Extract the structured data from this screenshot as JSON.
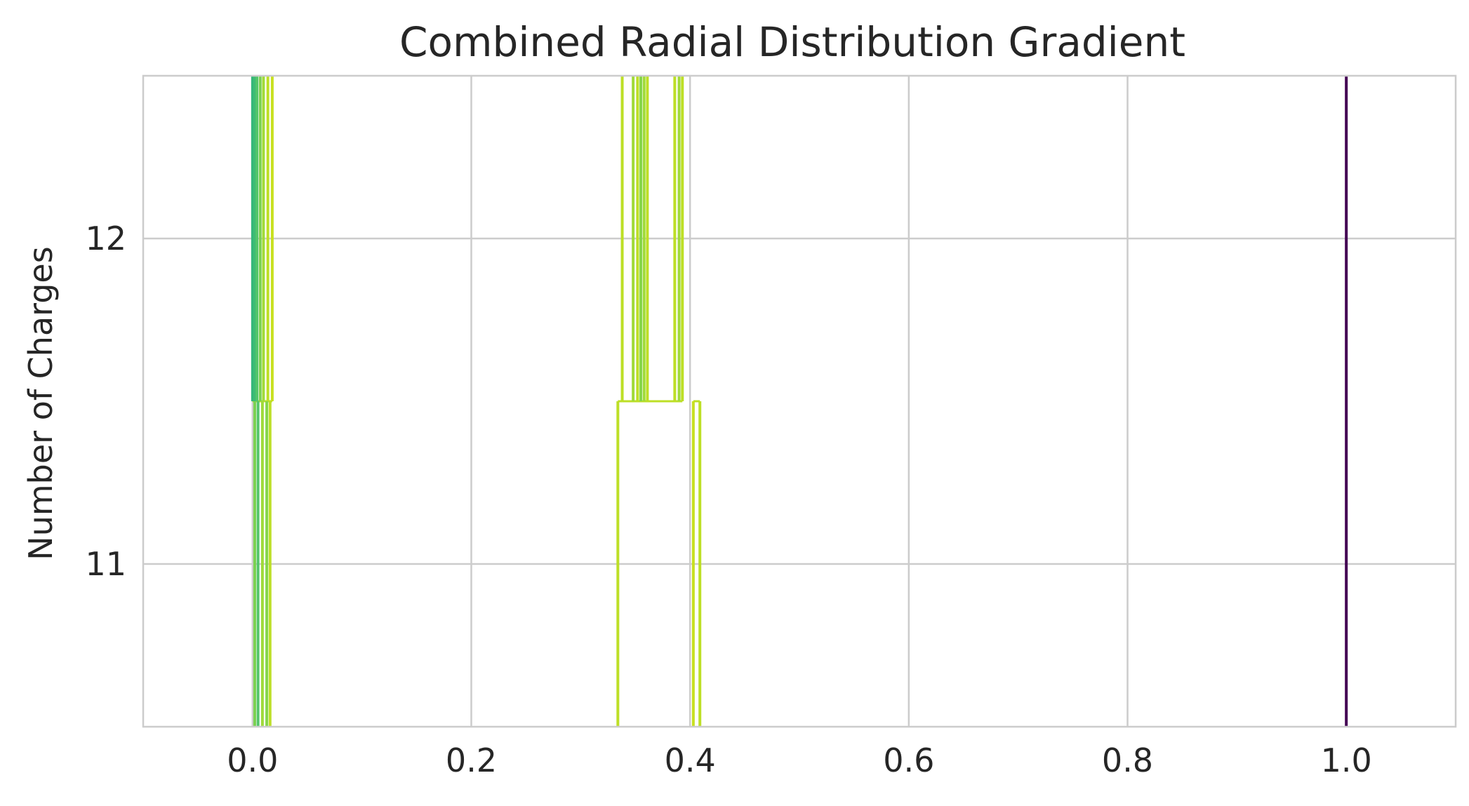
{
  "chart_data": {
    "type": "line",
    "title": "Combined Radial Distribution Gradient",
    "xlabel": "",
    "ylabel": "Number of Charges",
    "xlim": [
      -0.1,
      1.1
    ],
    "ylim": [
      10.5,
      12.5
    ],
    "x_ticks": [
      {
        "value": 0.0,
        "label": "0.0"
      },
      {
        "value": 0.2,
        "label": "0.2"
      },
      {
        "value": 0.4,
        "label": "0.4"
      },
      {
        "value": 0.6,
        "label": "0.6"
      },
      {
        "value": 0.8,
        "label": "0.8"
      },
      {
        "value": 1.0,
        "label": "1.0"
      }
    ],
    "y_ticks": [
      {
        "value": 11,
        "label": "11"
      },
      {
        "value": 12,
        "label": "12"
      }
    ],
    "grid": true,
    "legend": "none",
    "segments": [
      {
        "x": 0.0,
        "y_start": 11.5,
        "y_end": 12.5,
        "color": "#35b779"
      },
      {
        "x": 0.002,
        "y_start": 11.5,
        "y_end": 12.5,
        "color": "#3fbc73"
      },
      {
        "x": 0.004,
        "y_start": 11.5,
        "y_end": 12.5,
        "color": "#52c569"
      },
      {
        "x": 0.007,
        "y_start": 11.5,
        "y_end": 12.5,
        "color": "#7ad151"
      },
      {
        "x": 0.01,
        "y_start": 11.5,
        "y_end": 12.5,
        "color": "#a0da39"
      },
      {
        "x": 0.014,
        "y_start": 11.5,
        "y_end": 12.5,
        "color": "#bddf26"
      },
      {
        "x": 0.018,
        "y_start": 11.5,
        "y_end": 12.5,
        "color": "#c8e020"
      },
      {
        "x": 0.002,
        "y_start": 10.5,
        "y_end": 11.5,
        "color": "#7ad151"
      },
      {
        "x": 0.005,
        "y_start": 10.5,
        "y_end": 11.5,
        "color": "#52c569"
      },
      {
        "x": 0.009,
        "y_start": 10.5,
        "y_end": 11.5,
        "color": "#a0da39"
      },
      {
        "x": 0.013,
        "y_start": 10.5,
        "y_end": 11.5,
        "color": "#86d549"
      },
      {
        "x": 0.016,
        "y_start": 10.5,
        "y_end": 11.5,
        "color": "#bddf26"
      },
      {
        "x": 0.338,
        "y_start": 11.5,
        "y_end": 12.5,
        "color": "#bddf26"
      },
      {
        "x": 0.348,
        "y_start": 11.5,
        "y_end": 12.5,
        "color": "#a0da39"
      },
      {
        "x": 0.352,
        "y_start": 11.5,
        "y_end": 12.5,
        "color": "#bddf26"
      },
      {
        "x": 0.355,
        "y_start": 11.5,
        "y_end": 12.5,
        "color": "#86d549"
      },
      {
        "x": 0.358,
        "y_start": 11.5,
        "y_end": 12.5,
        "color": "#a0da39"
      },
      {
        "x": 0.361,
        "y_start": 11.5,
        "y_end": 12.5,
        "color": "#bddf26"
      },
      {
        "x": 0.386,
        "y_start": 11.5,
        "y_end": 12.5,
        "color": "#bddf26"
      },
      {
        "x": 0.39,
        "y_start": 11.5,
        "y_end": 12.5,
        "color": "#a0da39"
      },
      {
        "x": 0.393,
        "y_start": 11.5,
        "y_end": 12.5,
        "color": "#bddf26"
      },
      {
        "x": 0.334,
        "y_start": 10.5,
        "y_end": 11.5,
        "color": "#bddf26"
      },
      {
        "x": 0.403,
        "y_start": 10.5,
        "y_end": 11.5,
        "color": "#c8e020"
      },
      {
        "x": 0.409,
        "y_start": 10.5,
        "y_end": 11.5,
        "color": "#bddf26"
      },
      {
        "x": 1.0,
        "y_start": 10.5,
        "y_end": 12.5,
        "color": "#440154"
      }
    ],
    "connectors": [
      {
        "x_start": 0.0,
        "x_end": 0.018,
        "y": 11.5,
        "color": "#bddf26"
      },
      {
        "x_start": 0.338,
        "x_end": 0.393,
        "y": 11.5,
        "color": "#bddf26"
      },
      {
        "x_start": 0.334,
        "x_end": 0.338,
        "y": 11.5,
        "color": "#bddf26"
      },
      {
        "x_start": 0.403,
        "x_end": 0.409,
        "y": 11.5,
        "color": "#bddf26"
      }
    ]
  }
}
